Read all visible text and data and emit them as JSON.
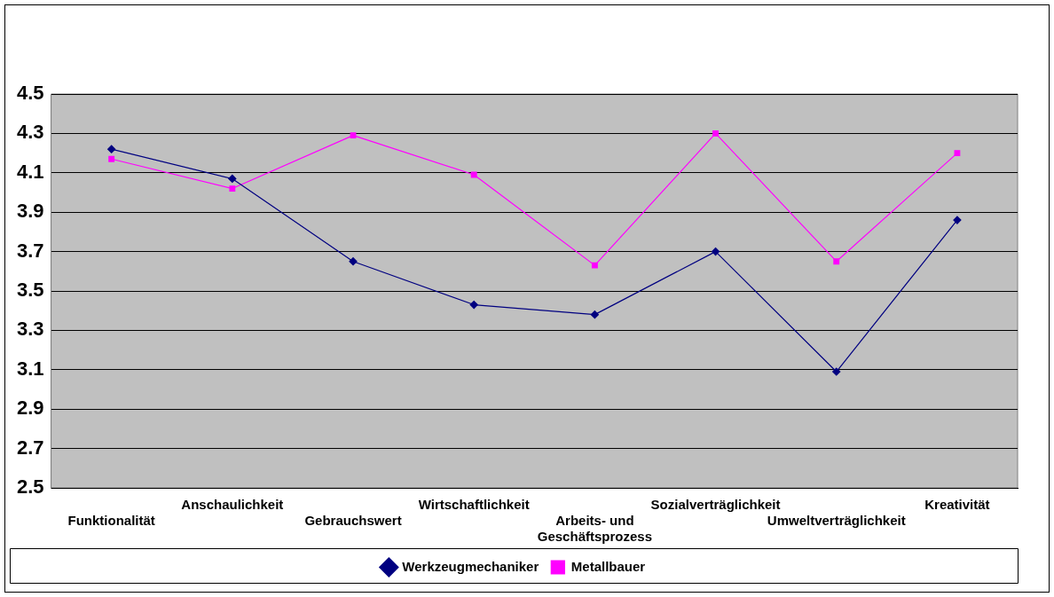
{
  "chart_data": {
    "type": "line",
    "categories": [
      "Funktionalität",
      "Anschaulichkeit",
      "Gebrauchswert",
      "Wirtschaftlichkeit",
      "Arbeits- und\nGeschäftsprozess",
      "Sozialverträglichkeit",
      "Umweltverträglichkeit",
      "Kreativität"
    ],
    "series": [
      {
        "name": "Werkzeugmechaniker",
        "color": "#000080",
        "marker": "diamond",
        "values": [
          4.22,
          4.07,
          3.65,
          3.43,
          3.38,
          3.7,
          3.09,
          3.86
        ]
      },
      {
        "name": "Metallbauer",
        "color": "#ff00ff",
        "marker": "square",
        "values": [
          4.17,
          4.02,
          4.29,
          4.09,
          3.63,
          4.3,
          3.65,
          4.2
        ]
      }
    ],
    "ylim": [
      2.5,
      4.5
    ],
    "yticks": [
      2.5,
      2.7,
      2.9,
      3.1,
      3.3,
      3.5,
      3.7,
      3.9,
      4.1,
      4.3,
      4.5
    ],
    "grid": "y",
    "legend": "bottom",
    "line_style": "solid"
  }
}
